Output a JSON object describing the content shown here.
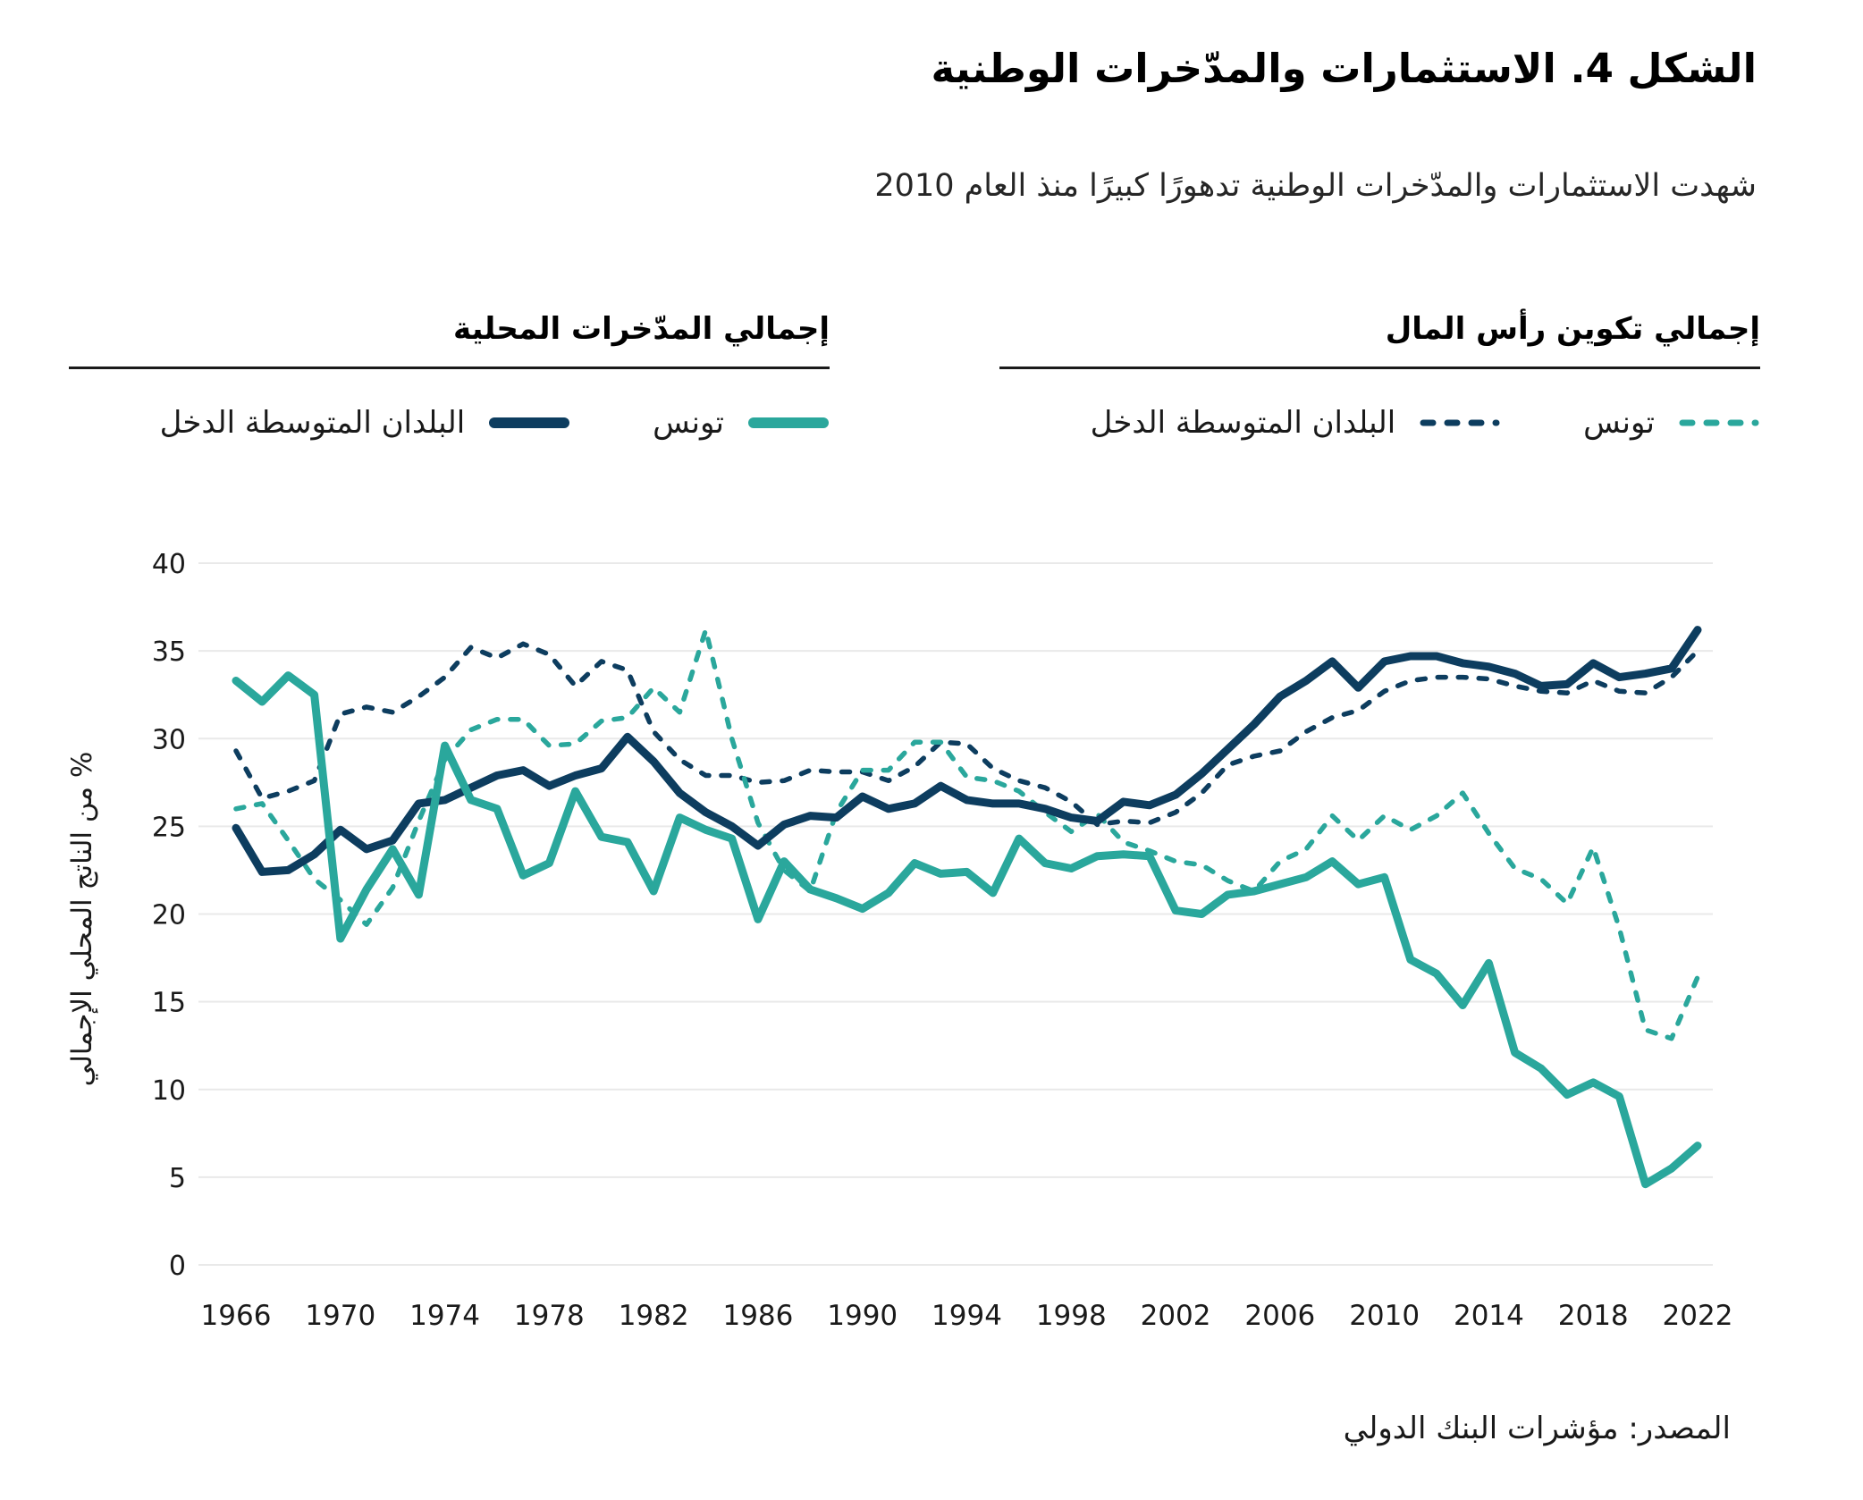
{
  "title": "الشكل 4. الاستثمارات والمدّخرات الوطنية",
  "subtitle": "شهدت الاستثمارات والمدّخرات الوطنية تدهورًا كبيرًا منذ العام 2010",
  "source": "المصدر: مؤشرات البنك الدولي",
  "colors": {
    "teal": "#2AA79C",
    "navy": "#0D3D5F",
    "grid": "#E9E9E9",
    "text": "#1A1A1A"
  },
  "legend": {
    "capital_group": {
      "title": "إجمالي تكوين رأس المال",
      "items": [
        {
          "label": "تونس",
          "style": "dashed",
          "color": "teal"
        },
        {
          "label": "البلدان المتوسطة الدخل",
          "style": "dashed",
          "color": "navy"
        }
      ]
    },
    "savings_group": {
      "title": "إجمالي المدّخرات المحلية",
      "items": [
        {
          "label": "تونس",
          "style": "solid",
          "color": "teal"
        },
        {
          "label": "البلدان المتوسطة الدخل",
          "style": "solid",
          "color": "navy"
        }
      ]
    }
  },
  "chart_data": {
    "type": "line",
    "title": "الشكل 4. الاستثمارات والمدّخرات الوطنية",
    "xlabel": "",
    "ylabel": "% من الناتج المحلي الإجمالي",
    "ylim": [
      0,
      40
    ],
    "yticks": [
      0,
      5,
      10,
      15,
      20,
      25,
      30,
      35,
      40
    ],
    "xticks": [
      1966,
      1970,
      1974,
      1978,
      1982,
      1986,
      1990,
      1994,
      1998,
      2002,
      2006,
      2010,
      2014,
      2018,
      2022
    ],
    "grid": true,
    "legend_position": "top",
    "x": [
      1966,
      1967,
      1968,
      1969,
      1970,
      1971,
      1972,
      1973,
      1974,
      1975,
      1976,
      1977,
      1978,
      1979,
      1980,
      1981,
      1982,
      1983,
      1984,
      1985,
      1986,
      1987,
      1988,
      1989,
      1990,
      1991,
      1992,
      1993,
      1994,
      1995,
      1996,
      1997,
      1998,
      1999,
      2000,
      2001,
      2002,
      2003,
      2004,
      2005,
      2006,
      2007,
      2008,
      2009,
      2010,
      2011,
      2012,
      2013,
      2014,
      2015,
      2016,
      2017,
      2018,
      2019,
      2020,
      2021,
      2022
    ],
    "series": [
      {
        "name": "البلدان المتوسطة الدخل — إجمالي تكوين رأس المال",
        "style": "dashed",
        "color": "navy",
        "values": [
          29.3,
          26.6,
          27.0,
          27.6,
          31.4,
          31.8,
          31.5,
          32.4,
          33.5,
          35.2,
          34.6,
          35.4,
          34.8,
          33.0,
          34.4,
          33.9,
          30.4,
          28.8,
          27.9,
          27.9,
          27.5,
          27.6,
          28.2,
          28.1,
          28.1,
          27.6,
          28.4,
          29.8,
          29.7,
          28.3,
          27.6,
          27.2,
          26.4,
          25.1,
          25.3,
          25.2,
          25.8,
          26.9,
          28.5,
          29.0,
          29.3,
          30.4,
          31.2,
          31.6,
          32.7,
          33.3,
          33.5,
          33.5,
          33.4,
          33.0,
          32.7,
          32.6,
          33.3,
          32.7,
          32.6,
          33.5,
          35.0
        ]
      },
      {
        "name": "تونس — إجمالي تكوين رأس المال",
        "style": "dashed",
        "color": "teal",
        "values": [
          26.0,
          26.3,
          24.2,
          22.0,
          20.8,
          19.4,
          21.5,
          25.3,
          28.8,
          30.5,
          31.1,
          31.1,
          29.6,
          29.7,
          31.0,
          31.2,
          32.9,
          31.5,
          36.2,
          30.0,
          25.2,
          22.5,
          21.3,
          25.8,
          28.2,
          28.2,
          29.8,
          29.8,
          27.8,
          27.6,
          27.0,
          25.8,
          24.7,
          25.7,
          24.1,
          23.6,
          23.0,
          22.8,
          21.9,
          21.3,
          23.0,
          23.7,
          25.6,
          24.2,
          25.6,
          24.8,
          25.6,
          26.9,
          24.6,
          22.6,
          22.0,
          20.6,
          23.8,
          19.2,
          13.4,
          12.9,
          16.4
        ]
      },
      {
        "name": "البلدان المتوسطة الدخل — إجمالي المدّخرات المحلية",
        "style": "solid",
        "color": "navy",
        "values": [
          24.9,
          22.4,
          22.5,
          23.4,
          24.8,
          23.7,
          24.2,
          26.3,
          26.5,
          27.2,
          27.9,
          28.2,
          27.3,
          27.9,
          28.3,
          30.1,
          28.7,
          26.9,
          25.8,
          25.0,
          23.9,
          25.1,
          25.6,
          25.5,
          26.7,
          26.0,
          26.3,
          27.3,
          26.5,
          26.3,
          26.3,
          26.0,
          25.5,
          25.3,
          26.4,
          26.2,
          26.8,
          28.0,
          29.4,
          30.8,
          32.4,
          33.3,
          34.4,
          32.9,
          34.4,
          34.7,
          34.7,
          34.3,
          34.1,
          33.7,
          33.0,
          33.1,
          34.3,
          33.5,
          33.7,
          34.0,
          36.2
        ]
      },
      {
        "name": "تونس — إجمالي المدّخرات المحلية",
        "style": "solid",
        "color": "teal",
        "values": [
          33.3,
          32.1,
          33.6,
          32.5,
          18.6,
          21.4,
          23.7,
          21.1,
          29.6,
          26.5,
          26.0,
          22.2,
          22.9,
          27.0,
          24.4,
          24.1,
          21.3,
          25.5,
          24.8,
          24.3,
          19.7,
          23.0,
          21.4,
          20.9,
          20.3,
          21.2,
          22.9,
          22.3,
          22.4,
          21.2,
          24.3,
          22.9,
          22.6,
          23.3,
          23.4,
          23.3,
          20.2,
          20.0,
          21.1,
          21.3,
          21.7,
          22.1,
          23.0,
          21.7,
          22.1,
          17.4,
          16.6,
          14.8,
          17.2,
          12.1,
          11.2,
          9.7,
          10.4,
          9.6,
          4.6,
          5.5,
          6.8
        ]
      }
    ]
  }
}
